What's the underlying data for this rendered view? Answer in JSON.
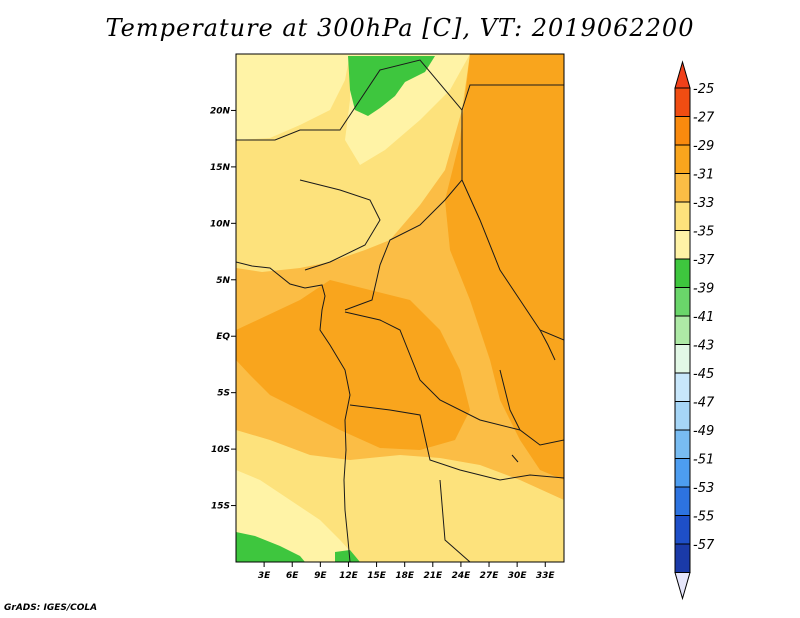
{
  "title": "Temperature at 300hPa [C], VT: 2019062200",
  "credit": "GrADS: IGES/COLA",
  "map": {
    "lon_range": [
      0,
      35
    ],
    "lat_range": [
      -20,
      25
    ],
    "lat_ticks": [
      {
        "value": 20,
        "label": "20N"
      },
      {
        "value": 15,
        "label": "15N"
      },
      {
        "value": 10,
        "label": "10N"
      },
      {
        "value": 5,
        "label": "5N"
      },
      {
        "value": 0,
        "label": "EQ"
      },
      {
        "value": -5,
        "label": "5S"
      },
      {
        "value": -10,
        "label": "10S"
      },
      {
        "value": -15,
        "label": "15S"
      }
    ],
    "lon_ticks": [
      {
        "value": 3,
        "label": "3E"
      },
      {
        "value": 6,
        "label": "6E"
      },
      {
        "value": 9,
        "label": "9E"
      },
      {
        "value": 12,
        "label": "12E"
      },
      {
        "value": 15,
        "label": "15E"
      },
      {
        "value": 18,
        "label": "18E"
      },
      {
        "value": 21,
        "label": "21E"
      },
      {
        "value": 24,
        "label": "24E"
      },
      {
        "value": 27,
        "label": "27E"
      },
      {
        "value": 30,
        "label": "30E"
      },
      {
        "value": 33,
        "label": "33E"
      }
    ]
  },
  "colorbar": {
    "levels": [
      {
        "label": "-25",
        "color": "#f04d12"
      },
      {
        "label": "-27",
        "color": "#f98a0e"
      },
      {
        "label": "-29",
        "color": "#f9a51d"
      },
      {
        "label": "-31",
        "color": "#fbbd45"
      },
      {
        "label": "-33",
        "color": "#fde27c"
      },
      {
        "label": "-35",
        "color": "#fff3a6"
      },
      {
        "label": "-37",
        "color": "#3ec63e"
      },
      {
        "label": "-39",
        "color": "#6ad66a"
      },
      {
        "label": "-41",
        "color": "#aeeaa6"
      },
      {
        "label": "-43",
        "color": "#e2f8e6"
      },
      {
        "label": "-45",
        "color": "#c8e7fb"
      },
      {
        "label": "-47",
        "color": "#a6d6f7"
      },
      {
        "label": "-49",
        "color": "#78bcf2"
      },
      {
        "label": "-51",
        "color": "#4d9df0"
      },
      {
        "label": "-53",
        "color": "#2d73e0"
      },
      {
        "label": "-55",
        "color": "#1e4fc8"
      },
      {
        "label": "-57",
        "color": "#1a3aa8"
      }
    ],
    "top_color": "#f0401a",
    "bottom_color": "#0f1f80",
    "bottom_arrow_color": "#e6e6fb"
  },
  "fields": {
    "colors": {
      "pale": "#fff3a6",
      "light": "#fde27c",
      "mid": "#fbbd45",
      "orange": "#f9a51d",
      "deep": "#f98a0e",
      "green": "#3ec63e"
    }
  }
}
